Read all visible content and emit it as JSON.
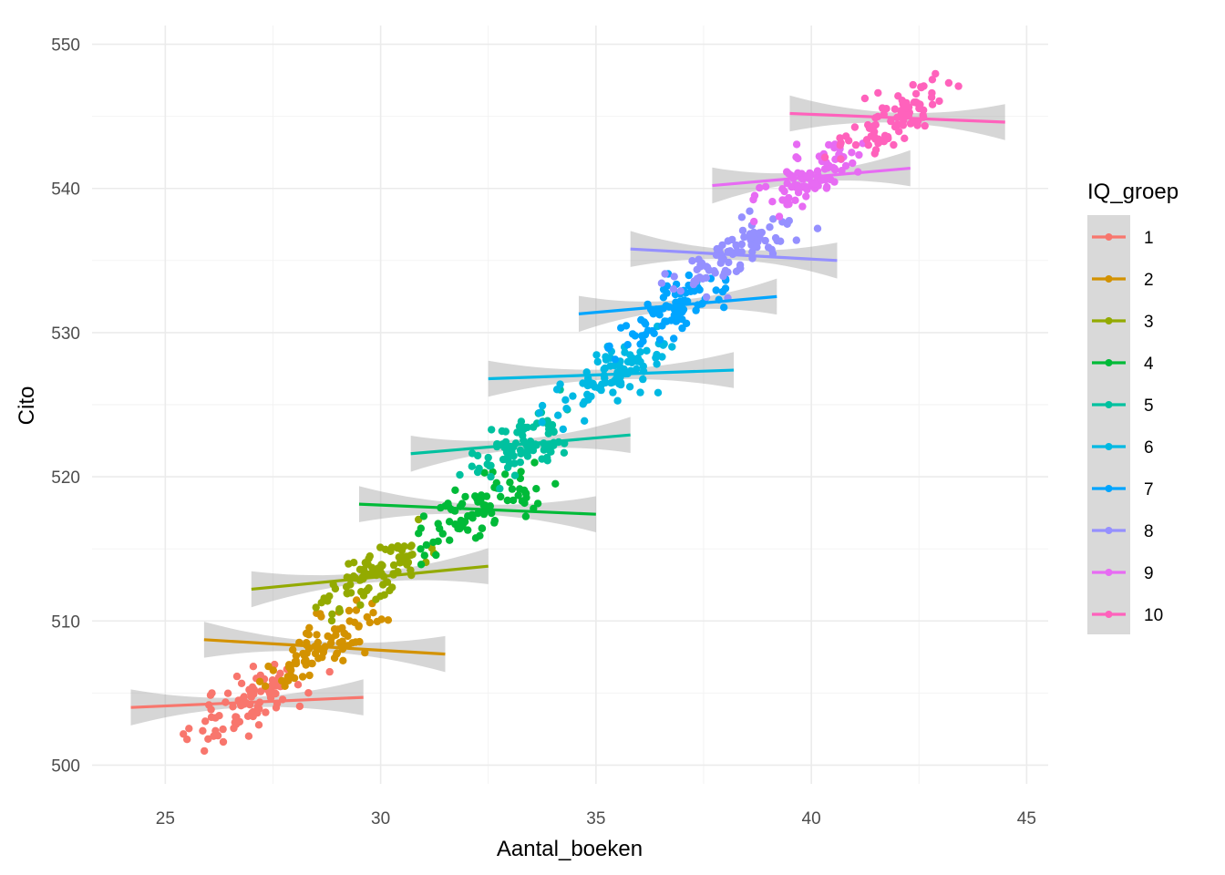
{
  "chart_data": {
    "type": "scatter",
    "xlabel": "Aantal_boeken",
    "ylabel": "Cito",
    "xlim": [
      23.3,
      45.5
    ],
    "ylim": [
      498.7,
      551.3
    ],
    "x_ticks": [
      25,
      30,
      35,
      40,
      45
    ],
    "y_ticks": [
      500,
      510,
      520,
      530,
      540,
      550
    ],
    "grid": true,
    "legend": {
      "title": "IQ_groep",
      "position": "right"
    },
    "series": [
      {
        "name": "1",
        "color": "#F8766D",
        "x_range": [
          24.2,
          29.6
        ],
        "y_center": 504.3,
        "line": [
          [
            24.2,
            504.0
          ],
          [
            29.6,
            504.7
          ]
        ]
      },
      {
        "name": "2",
        "color": "#D39200",
        "x_range": [
          25.9,
          31.5
        ],
        "y_center": 508.3,
        "line": [
          [
            25.9,
            508.7
          ],
          [
            31.5,
            507.7
          ]
        ]
      },
      {
        "name": "3",
        "color": "#93AA00",
        "x_range": [
          27.0,
          32.5
        ],
        "y_center": 513.0,
        "line": [
          [
            27.0,
            512.2
          ],
          [
            32.5,
            513.8
          ]
        ]
      },
      {
        "name": "4",
        "color": "#00BA38",
        "x_range": [
          29.5,
          35.0
        ],
        "y_center": 517.8,
        "line": [
          [
            29.5,
            518.1
          ],
          [
            35.0,
            517.4
          ]
        ]
      },
      {
        "name": "5",
        "color": "#00C19F",
        "x_range": [
          30.7,
          35.8
        ],
        "y_center": 522.2,
        "line": [
          [
            30.7,
            521.6
          ],
          [
            35.8,
            522.9
          ]
        ]
      },
      {
        "name": "6",
        "color": "#00B9E3",
        "x_range": [
          32.5,
          38.2
        ],
        "y_center": 527.0,
        "line": [
          [
            32.5,
            526.8
          ],
          [
            38.2,
            527.4
          ]
        ]
      },
      {
        "name": "7",
        "color": "#00A5FF",
        "x_range": [
          34.6,
          39.2
        ],
        "y_center": 531.8,
        "line": [
          [
            34.6,
            531.3
          ],
          [
            39.2,
            532.5
          ]
        ]
      },
      {
        "name": "8",
        "color": "#9590FF",
        "x_range": [
          35.8,
          40.6
        ],
        "y_center": 535.4,
        "line": [
          [
            35.8,
            535.8
          ],
          [
            40.6,
            535.0
          ]
        ]
      },
      {
        "name": "9",
        "color": "#E76BF3",
        "x_range": [
          37.7,
          42.3
        ],
        "y_center": 540.8,
        "line": [
          [
            37.7,
            540.2
          ],
          [
            42.3,
            541.4
          ]
        ]
      },
      {
        "name": "10",
        "color": "#FF62BC",
        "x_range": [
          39.5,
          44.5
        ],
        "y_center": 545.0,
        "line": [
          [
            39.5,
            545.2
          ],
          [
            44.5,
            544.6
          ]
        ]
      }
    ]
  }
}
